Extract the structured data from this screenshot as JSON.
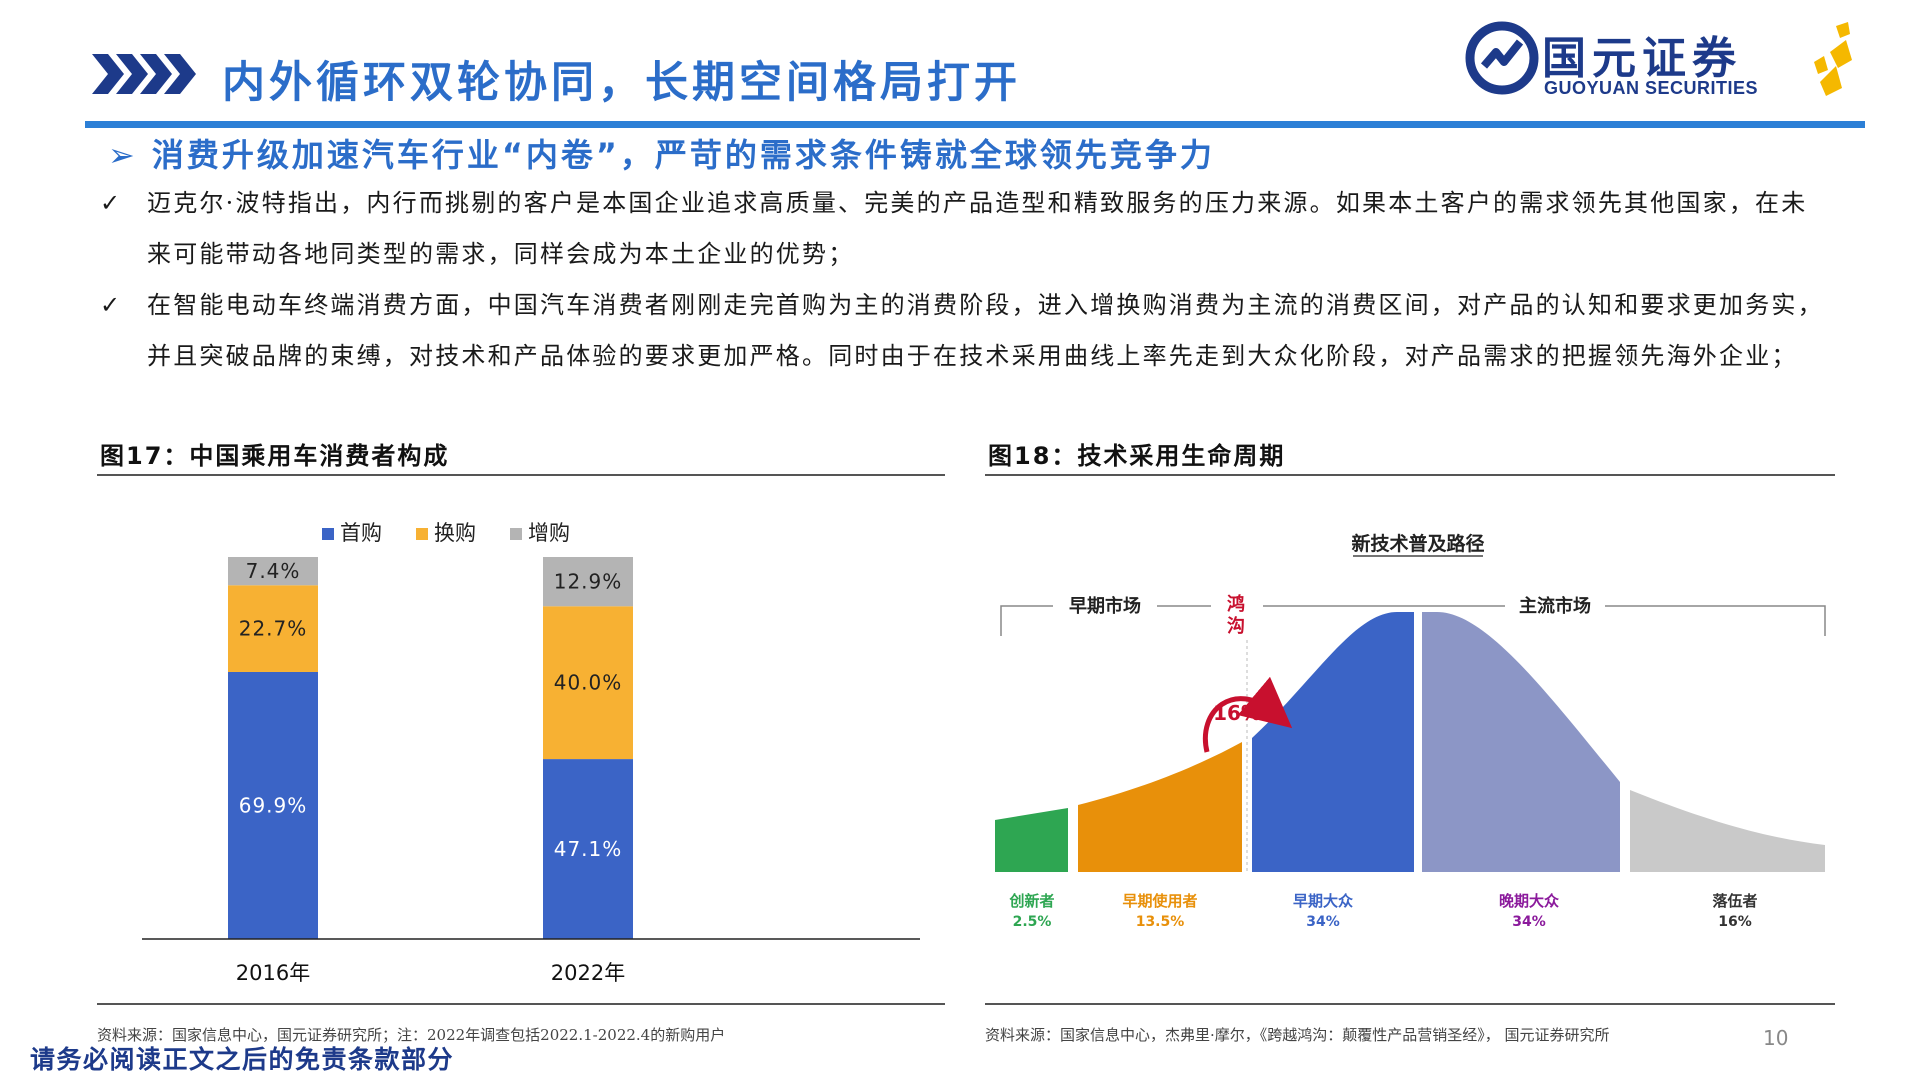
{
  "header": {
    "title": "内外循环双轮协同，长期空间格局打开",
    "logo_cn": "国元证券",
    "logo_en": "GUOYUAN SECURITIES",
    "colors": {
      "title": "#2b6dc9",
      "rule": "#2c7fd6",
      "logo": "#1d3a8a",
      "logo_accent": "#f5b800"
    }
  },
  "subtitle": {
    "marker": "➢",
    "text": "消费升级加速汽车行业“内卷”，严苛的需求条件铸就全球领先竞争力"
  },
  "bullets": [
    {
      "marker": "✓",
      "text": "迈克尔·波特指出，内行而挑剔的客户是本国企业追求高质量、完美的产品造型和精致服务的压力来源。如果本土客户的需求领先其他国家，在未来可能带动各地同类型的需求，同样会成为本土企业的优势；"
    },
    {
      "marker": "✓",
      "text": "在智能电动车终端消费方面，中国汽车消费者刚刚走完首购为主的消费阶段，进入增换购消费为主流的消费区间，对产品的认知和要求更加务实，并且突破品牌的束缚，对技术和产品体验的要求更加严格。同时由于在技术采用曲线上率先走到大众化阶段，对产品需求的把握领先海外企业；"
    }
  ],
  "fig17": {
    "caption": "图17：中国乘用车消费者构成",
    "source": "资料来源：国家信息中心，国元证券研究所；注：2022年调查包括2022.1-2022.4的新购用户"
  },
  "fig18": {
    "caption": "图18：技术采用生命周期",
    "source": "资料来源：国家信息中心，杰弗里·摩尔，《跨越鸿沟：颠覆性产品营销圣经》， 国元证券研究所",
    "diagram_title": "新技术普及路径",
    "early_market": "早期市场",
    "mainstream_market": "主流市场",
    "chasm": "鸿沟",
    "chasm_pct": "16%",
    "segments": [
      {
        "name": "创新者",
        "pct": "2.5%",
        "color": "#2ea652"
      },
      {
        "name": "早期使用者",
        "pct": "13.5%",
        "color": "#e8900a"
      },
      {
        "name": "早期大众",
        "pct": "34%",
        "color": "#3b64c6"
      },
      {
        "name": "晚期大众",
        "pct": "34%",
        "color": "#8c96c6"
      },
      {
        "name": "落伍者",
        "pct": "16%",
        "color": "#c9c9c9"
      }
    ]
  },
  "chart_data": {
    "type": "bar",
    "stacked": true,
    "categories": [
      "2016年",
      "2022年"
    ],
    "series": [
      {
        "name": "首购",
        "values": [
          69.9,
          47.1
        ],
        "labels": [
          "69.9%",
          "47.1%"
        ],
        "color": "#3b64c6"
      },
      {
        "name": "换购",
        "values": [
          22.7,
          40.0
        ],
        "labels": [
          "22.7%",
          "40.0%"
        ],
        "color": "#f7b133"
      },
      {
        "name": "增购",
        "values": [
          7.4,
          12.9
        ],
        "labels": [
          "7.4%",
          "12.9%"
        ],
        "color": "#b4b4b4"
      }
    ],
    "ylim": [
      0,
      100
    ],
    "legend": "top",
    "grid": false
  },
  "footer": {
    "disclaimer": "请务必阅读正文之后的免责条款部分",
    "page": "10"
  }
}
